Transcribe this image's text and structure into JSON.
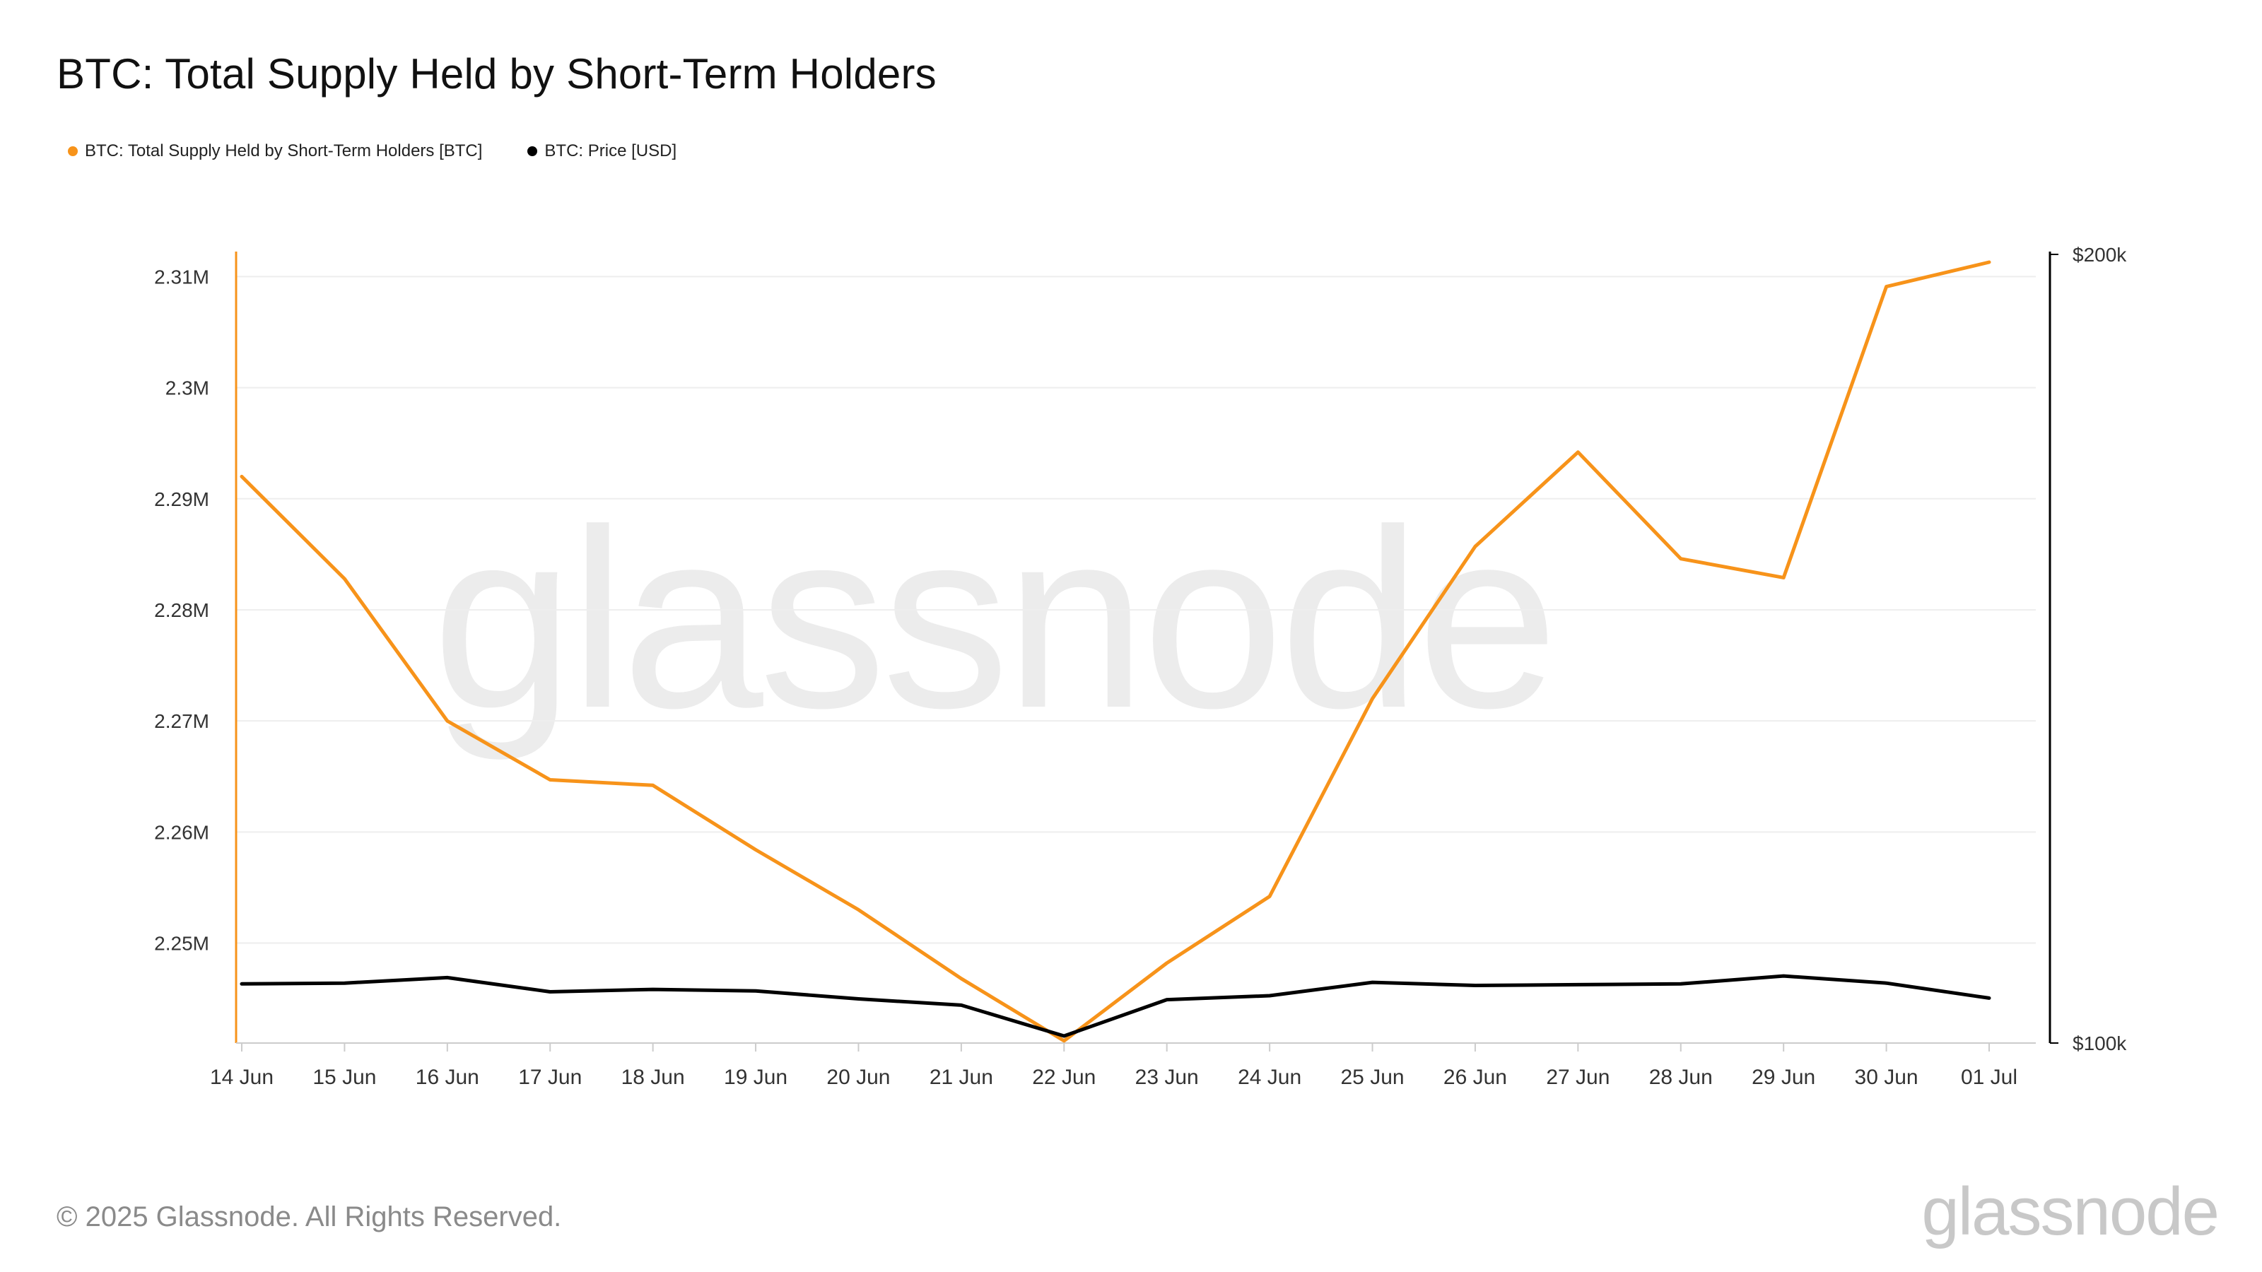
{
  "title": "BTC: Total Supply Held by Short-Term Holders",
  "legend": [
    {
      "label": "BTC: Total Supply Held by Short-Term Holders [BTC]",
      "color": "#f7931a"
    },
    {
      "label": "BTC: Price [USD]",
      "color": "#000000"
    }
  ],
  "watermark": "glassnode",
  "footer": {
    "copyright": "© 2025 Glassnode. All Rights Reserved.",
    "logo": "glassnode"
  },
  "colors": {
    "supply": "#f7931a",
    "price": "#000000",
    "grid": "#eeeeee",
    "axis_text": "#333333"
  },
  "chart_data": {
    "type": "line",
    "title": "BTC: Total Supply Held by Short-Term Holders",
    "categories": [
      "14 Jun",
      "15 Jun",
      "16 Jun",
      "17 Jun",
      "18 Jun",
      "19 Jun",
      "20 Jun",
      "21 Jun",
      "22 Jun",
      "23 Jun",
      "24 Jun",
      "25 Jun",
      "26 Jun",
      "27 Jun",
      "28 Jun",
      "29 Jun",
      "30 Jun",
      "01 Jul"
    ],
    "y_left": {
      "ticks": [
        2250000,
        2260000,
        2270000,
        2280000,
        2290000,
        2300000,
        2310000
      ],
      "tick_labels": [
        "2.25M",
        "2.26M",
        "2.27M",
        "2.28M",
        "2.29M",
        "2.3M",
        "2.31M"
      ],
      "range": [
        2241000,
        2312000
      ]
    },
    "y_right": {
      "ticks": [
        100000,
        200000
      ],
      "tick_labels": [
        "$100k",
        "$200k"
      ],
      "range": [
        100000,
        200000
      ]
    },
    "grid": true,
    "legend_position": "top-left",
    "series": [
      {
        "name": "BTC: Total Supply Held by Short-Term Holders [BTC]",
        "axis": "left",
        "color": "#f7931a",
        "values": [
          2292000,
          2282800,
          2270000,
          2264700,
          2264200,
          2258400,
          2253000,
          2246800,
          2241200,
          2248200,
          2254200,
          2272000,
          2285700,
          2294200,
          2284600,
          2282900,
          2309100,
          2311300
        ]
      },
      {
        "name": "BTC: Price [USD]",
        "axis": "right",
        "color": "#000000",
        "values": [
          107500,
          107600,
          108300,
          106500,
          106800,
          106600,
          105600,
          104800,
          100900,
          105500,
          106000,
          107700,
          107300,
          107400,
          107500,
          108500,
          107600,
          105700
        ]
      }
    ]
  }
}
